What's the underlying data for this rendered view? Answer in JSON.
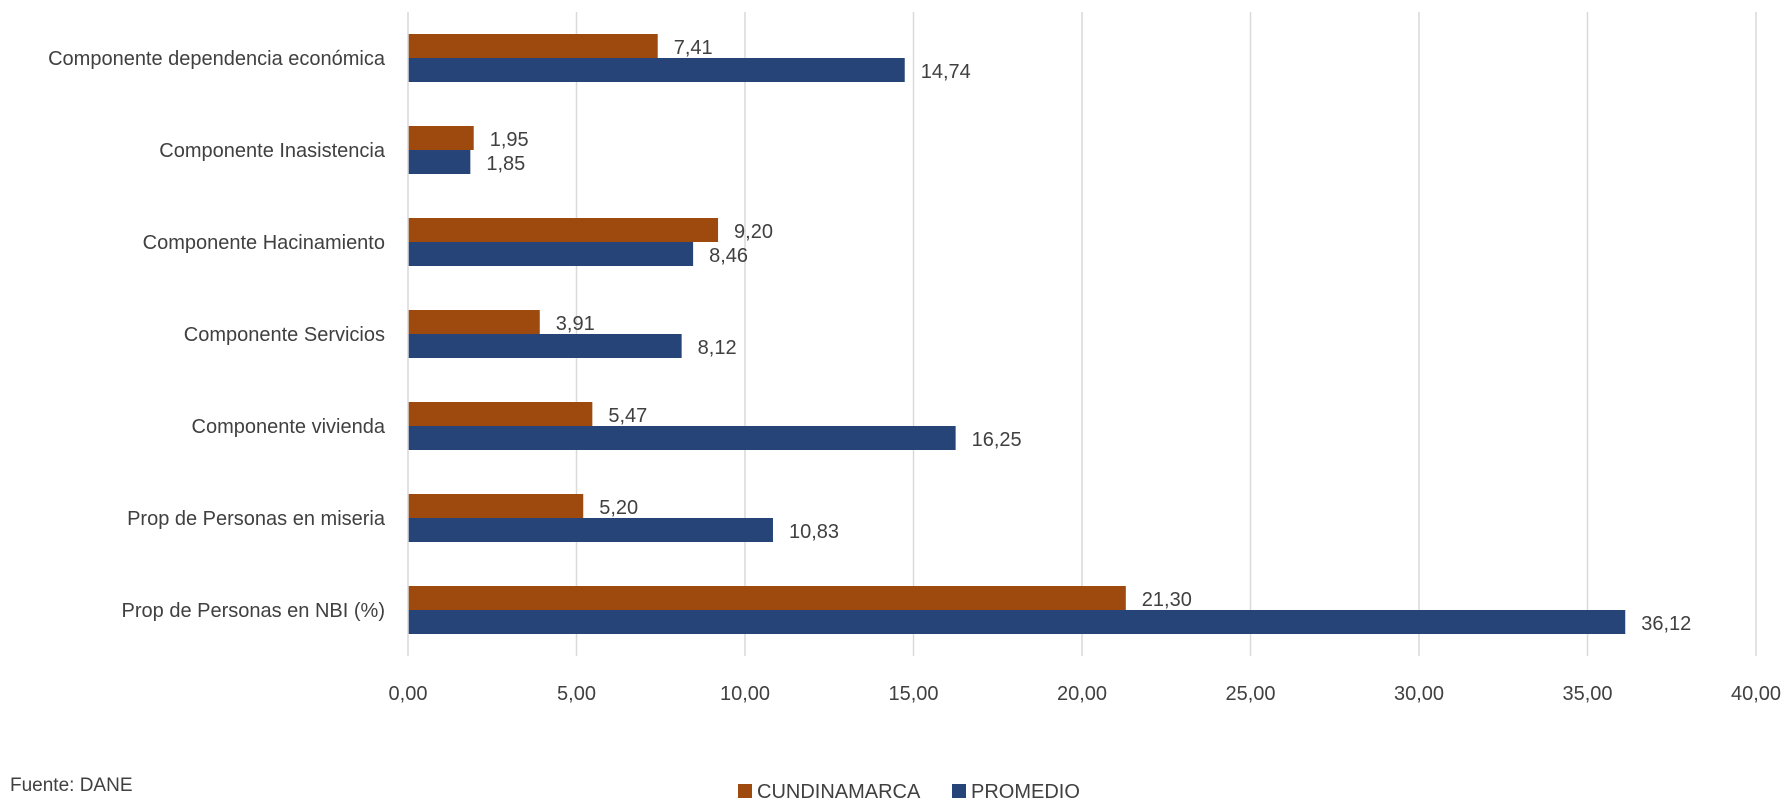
{
  "chart_data": {
    "type": "bar",
    "orientation": "horizontal",
    "categories": [
      "Componente dependencia económica",
      "Componente Inasistencia",
      "Componente Hacinamiento",
      "Componente Servicios",
      "Componente vivienda",
      "Prop de Personas en miseria",
      "Prop de Personas en NBI (%)"
    ],
    "series": [
      {
        "name": "CUNDINAMARCA",
        "color": "#9E4A0F",
        "values": [
          7.41,
          1.95,
          9.2,
          3.91,
          5.47,
          5.2,
          21.3
        ],
        "labels": [
          "7,41",
          "1,95",
          "9,20",
          "3,91",
          "5,47",
          "5,20",
          "21,30"
        ]
      },
      {
        "name": "PROMEDIO",
        "color": "#264478",
        "values": [
          14.74,
          1.85,
          8.46,
          8.12,
          16.25,
          10.83,
          36.12
        ],
        "labels": [
          "14,74",
          "1,85",
          "8,46",
          "8,12",
          "16,25",
          "10,83",
          "36,12"
        ]
      }
    ],
    "xlim": [
      0,
      40
    ],
    "xticks": [
      0,
      5,
      10,
      15,
      20,
      25,
      30,
      35,
      40
    ],
    "xtick_labels": [
      "0,00",
      "5,00",
      "10,00",
      "15,00",
      "20,00",
      "25,00",
      "30,00",
      "35,00",
      "40,00"
    ],
    "grid": "vertical",
    "legend_position": "bottom"
  },
  "source_text": "Fuente: DANE"
}
